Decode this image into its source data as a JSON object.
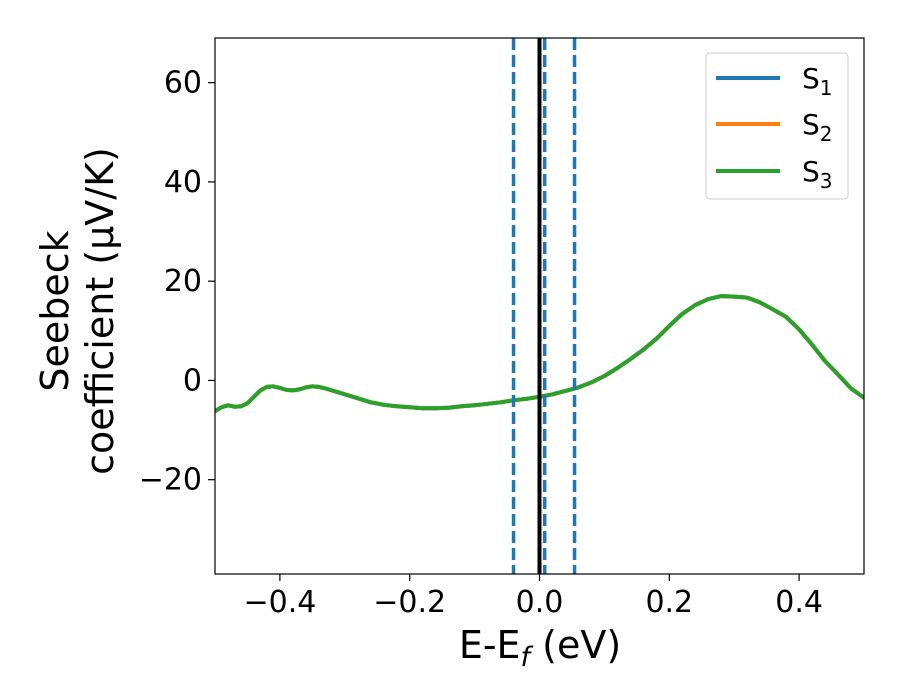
{
  "chart_data": {
    "type": "line",
    "xlabel": {
      "main": "E-E",
      "sub": "f",
      "tail": " (eV)"
    },
    "ylabel": {
      "line1": "Seebeck",
      "line2": "coefficient  (μV/K)"
    },
    "xlim": [
      -0.5,
      0.5
    ],
    "ylim": [
      -39,
      69
    ],
    "xticks": [
      {
        "value": -0.4,
        "label": "−0.4"
      },
      {
        "value": -0.2,
        "label": "−0.2"
      },
      {
        "value": 0.0,
        "label": "0.0"
      },
      {
        "value": 0.2,
        "label": "0.2"
      },
      {
        "value": 0.4,
        "label": "0.4"
      }
    ],
    "yticks": [
      {
        "value": -20,
        "label": "−20"
      },
      {
        "value": 0,
        "label": "0"
      },
      {
        "value": 20,
        "label": "20"
      },
      {
        "value": 40,
        "label": "40"
      },
      {
        "value": 60,
        "label": "60"
      }
    ],
    "grid": false,
    "legend_placement": "top-right",
    "series": [
      {
        "name": "S",
        "sub": "1",
        "color": "#1f77b4"
      },
      {
        "name": "S",
        "sub": "2",
        "color": "#ff7f0e"
      },
      {
        "name": "S",
        "sub": "3",
        "color": "#2ca02c"
      }
    ],
    "shared_curve": {
      "x": [
        -0.5,
        -0.49,
        -0.48,
        -0.47,
        -0.46,
        -0.45,
        -0.44,
        -0.43,
        -0.42,
        -0.41,
        -0.4,
        -0.39,
        -0.38,
        -0.37,
        -0.36,
        -0.35,
        -0.34,
        -0.33,
        -0.32,
        -0.3,
        -0.28,
        -0.26,
        -0.24,
        -0.22,
        -0.2,
        -0.18,
        -0.16,
        -0.14,
        -0.12,
        -0.1,
        -0.08,
        -0.06,
        -0.04,
        -0.02,
        0.0,
        0.02,
        0.04,
        0.06,
        0.08,
        0.1,
        0.12,
        0.14,
        0.16,
        0.18,
        0.2,
        0.22,
        0.24,
        0.26,
        0.28,
        0.3,
        0.32,
        0.34,
        0.36,
        0.38,
        0.4,
        0.42,
        0.44,
        0.46,
        0.48,
        0.5
      ],
      "y": [
        -6.2,
        -5.4,
        -5.0,
        -5.3,
        -5.2,
        -4.6,
        -3.3,
        -2.0,
        -1.3,
        -1.2,
        -1.5,
        -1.9,
        -2.0,
        -1.8,
        -1.4,
        -1.2,
        -1.3,
        -1.6,
        -2.0,
        -2.8,
        -3.6,
        -4.4,
        -4.9,
        -5.2,
        -5.4,
        -5.6,
        -5.6,
        -5.5,
        -5.2,
        -5.0,
        -4.7,
        -4.4,
        -4.0,
        -3.7,
        -3.3,
        -2.8,
        -2.1,
        -1.4,
        -0.4,
        0.9,
        2.5,
        4.3,
        6.2,
        8.4,
        11.0,
        13.4,
        15.2,
        16.4,
        17.0,
        16.9,
        16.7,
        15.7,
        14.3,
        12.8,
        10.3,
        7.2,
        3.9,
        1.2,
        -1.6,
        -3.5
      ]
    },
    "vertical_lines": [
      {
        "x": 0.0,
        "style": "solid",
        "color": "#000000"
      },
      {
        "x": -0.04,
        "style": "dashed",
        "color": "#1f77b4"
      },
      {
        "x": 0.008,
        "style": "dashed",
        "color": "#1f77b4"
      },
      {
        "x": 0.054,
        "style": "dashed",
        "color": "#1f77b4"
      }
    ]
  }
}
